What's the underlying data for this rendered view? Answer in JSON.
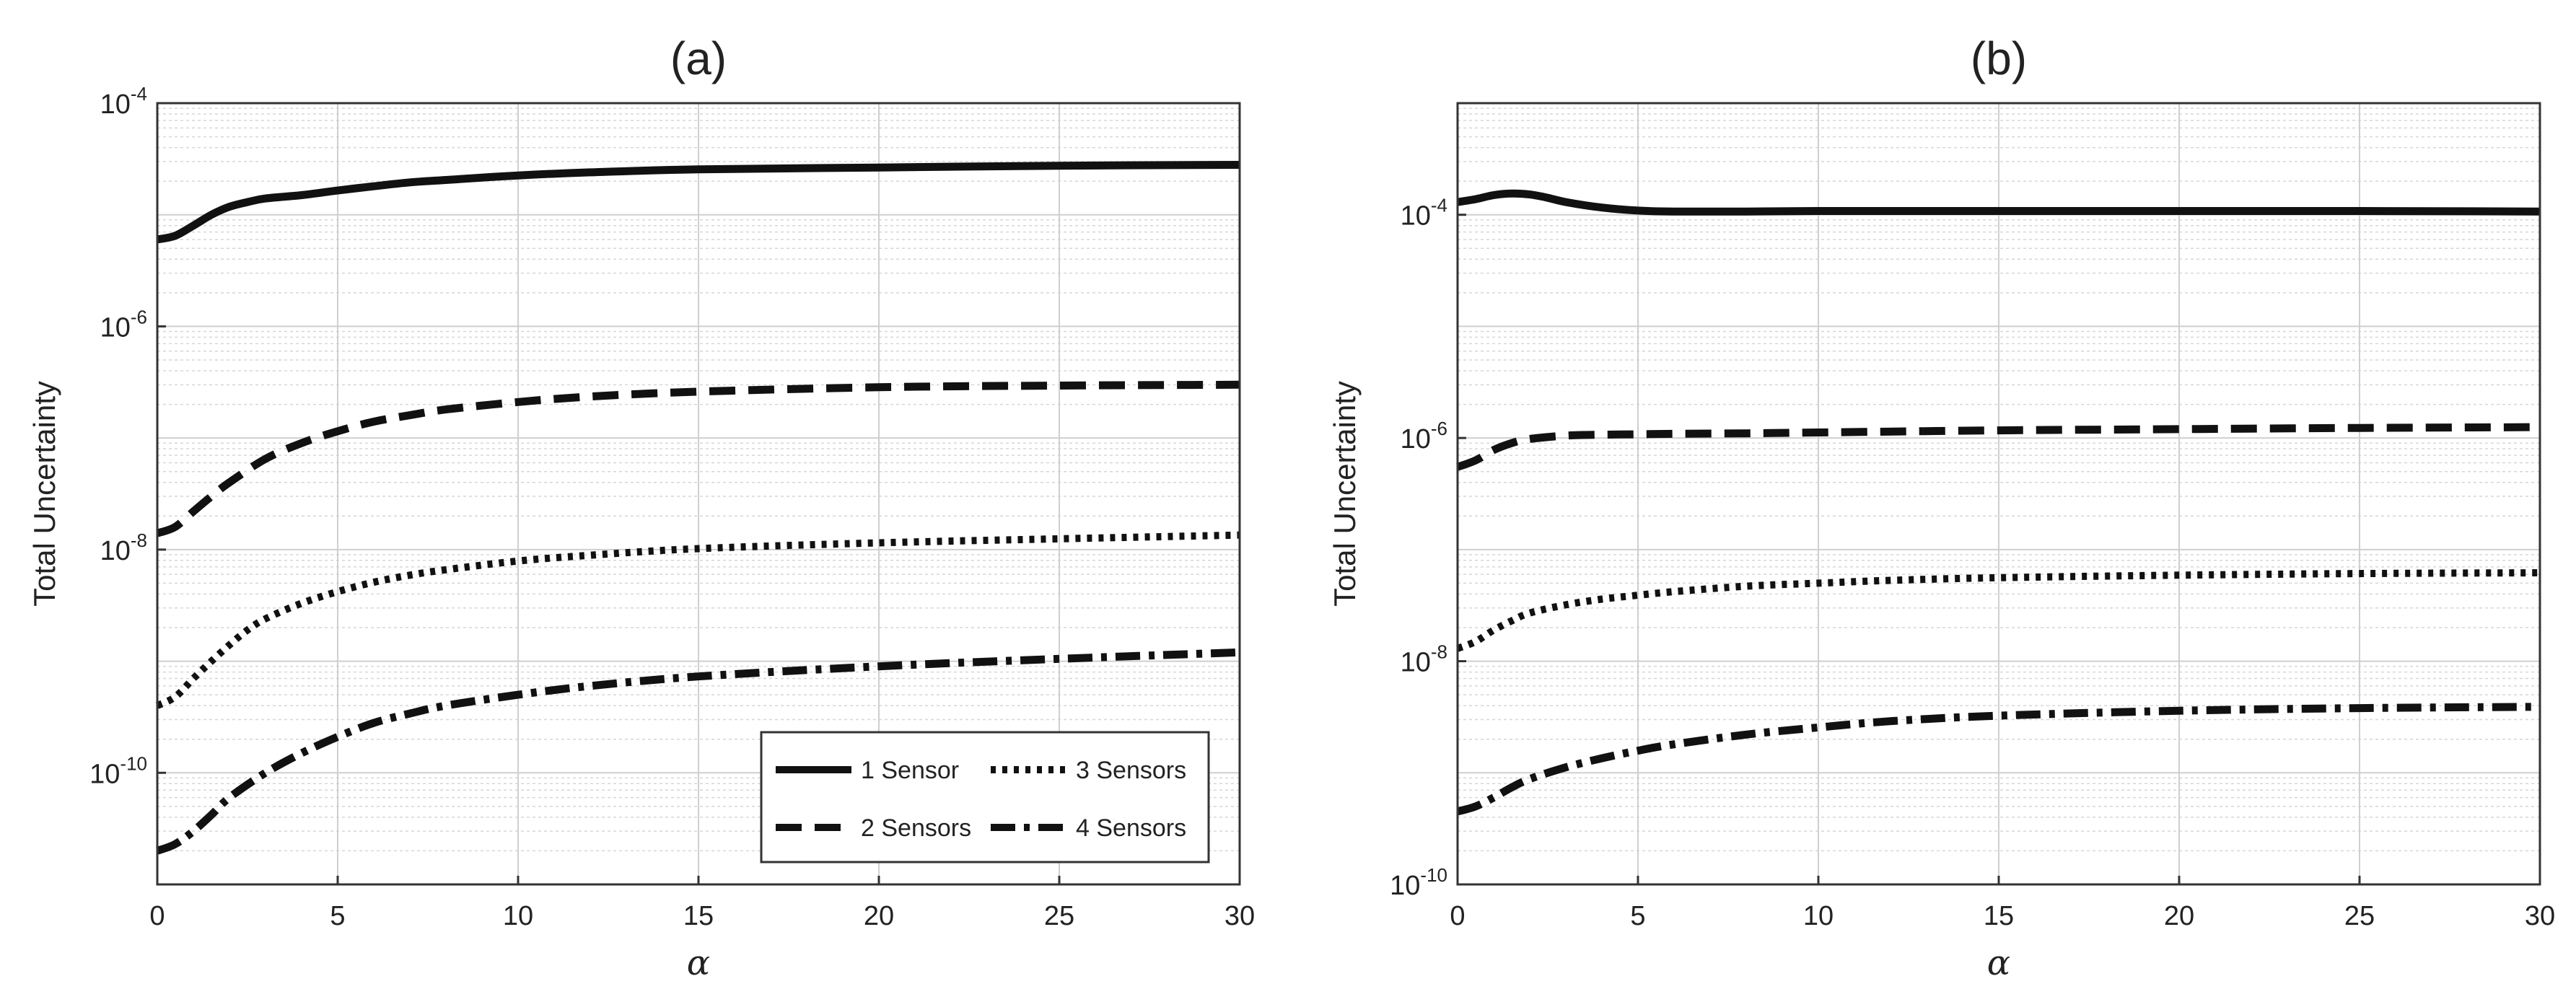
{
  "figure": {
    "panels": [
      "(a)",
      "(b)"
    ]
  },
  "chart_data": [
    {
      "type": "line",
      "title": "(a)",
      "xlabel": "α",
      "ylabel": "Total Uncertainty",
      "xlim": [
        0,
        30
      ],
      "ylim": [
        1e-11,
        0.0001
      ],
      "yscale": "log",
      "x_ticks": [
        0,
        5,
        10,
        15,
        20,
        25,
        30
      ],
      "y_ticks": [
        {
          "value": 0.0001,
          "base": "10",
          "exp": "-4"
        },
        {
          "value": 1e-06,
          "base": "10",
          "exp": "-6"
        },
        {
          "value": 1e-08,
          "base": "10",
          "exp": "-8"
        },
        {
          "value": 1e-10,
          "base": "10",
          "exp": "-10"
        }
      ],
      "grid": true,
      "minor_grid": true,
      "legend_position": "bottom-right",
      "legend_columns": 2,
      "series": [
        {
          "name": "1 Sensor",
          "style": "solid",
          "x": [
            0,
            0.5,
            1,
            1.5,
            2,
            2.5,
            3,
            4,
            5,
            6,
            7,
            8,
            10,
            12,
            15,
            20,
            25,
            30
          ],
          "y": [
            6e-06,
            6.5e-06,
            8e-06,
            1e-05,
            1.18e-05,
            1.3e-05,
            1.4e-05,
            1.5e-05,
            1.65e-05,
            1.8e-05,
            1.95e-05,
            2.05e-05,
            2.25e-05,
            2.4e-05,
            2.55e-05,
            2.65e-05,
            2.75e-05,
            2.8e-05
          ]
        },
        {
          "name": "2 Sensors",
          "style": "dashed",
          "x": [
            0,
            0.5,
            1,
            1.5,
            2,
            3,
            4,
            5,
            6,
            7,
            8,
            10,
            12,
            15,
            20,
            25,
            30
          ],
          "y": [
            1.4e-08,
            1.6e-08,
            2.2e-08,
            3e-08,
            4e-08,
            6.5e-08,
            9e-08,
            1.15e-07,
            1.4e-07,
            1.6e-07,
            1.8e-07,
            2.1e-07,
            2.35e-07,
            2.6e-07,
            2.85e-07,
            2.95e-07,
            3e-07
          ]
        },
        {
          "name": "3 Sensors",
          "style": "dotted",
          "x": [
            0,
            0.5,
            1,
            1.5,
            2,
            2.5,
            3,
            4,
            5,
            6,
            7,
            8,
            10,
            12,
            15,
            20,
            25,
            30
          ],
          "y": [
            4e-10,
            4.8e-10,
            7e-10,
            1e-09,
            1.4e-09,
            1.9e-09,
            2.4e-09,
            3.3e-09,
            4.2e-09,
            5.1e-09,
            5.9e-09,
            6.6e-09,
            7.9e-09,
            8.9e-09,
            1.02e-08,
            1.15e-08,
            1.25e-08,
            1.35e-08
          ]
        },
        {
          "name": "4 Sensors",
          "style": "dashdot",
          "x": [
            0,
            0.5,
            1,
            1.5,
            2,
            3,
            4,
            5,
            6,
            7,
            8,
            10,
            12,
            15,
            20,
            25,
            30
          ],
          "y": [
            2e-11,
            2.3e-11,
            3e-11,
            4.2e-11,
            6e-11,
            1e-10,
            1.5e-10,
            2.1e-10,
            2.8e-10,
            3.4e-10,
            4e-10,
            5e-10,
            6e-10,
            7.3e-10,
            9e-10,
            1.05e-09,
            1.2e-09
          ]
        }
      ]
    },
    {
      "type": "line",
      "title": "(b)",
      "xlabel": "α",
      "ylabel": "Total Uncertainty",
      "xlim": [
        0,
        30
      ],
      "ylim": [
        1e-10,
        0.001
      ],
      "yscale": "log",
      "x_ticks": [
        0,
        5,
        10,
        15,
        20,
        25,
        30
      ],
      "y_ticks": [
        {
          "value": 0.0001,
          "base": "10",
          "exp": "-4"
        },
        {
          "value": 1e-06,
          "base": "10",
          "exp": "-6"
        },
        {
          "value": 1e-08,
          "base": "10",
          "exp": "-8"
        },
        {
          "value": 1e-10,
          "base": "10",
          "exp": "-10"
        }
      ],
      "grid": true,
      "minor_grid": true,
      "series": [
        {
          "name": "1 Sensor",
          "style": "solid",
          "x": [
            0,
            0.5,
            1,
            1.5,
            2,
            2.5,
            3,
            4,
            5,
            6,
            8,
            10,
            15,
            20,
            25,
            30
          ],
          "y": [
            0.00013,
            0.000138,
            0.00015,
            0.000155,
            0.000152,
            0.000142,
            0.00013,
            0.000116,
            0.000109,
            0.000107,
            0.000107,
            0.000108,
            0.000108,
            0.000108,
            0.000108,
            0.000107
          ]
        },
        {
          "name": "2 Sensors",
          "style": "dashed",
          "x": [
            0,
            0.5,
            1,
            1.5,
            2,
            3,
            4,
            5,
            6,
            8,
            10,
            15,
            20,
            25,
            30
          ],
          "y": [
            5.5e-07,
            6.3e-07,
            7.8e-07,
            9e-07,
            9.8e-07,
            1.05e-06,
            1.07e-06,
            1.08e-06,
            1.09e-06,
            1.1e-06,
            1.12e-06,
            1.17e-06,
            1.2e-06,
            1.23e-06,
            1.25e-06
          ]
        },
        {
          "name": "3 Sensors",
          "style": "dotted",
          "x": [
            0,
            0.5,
            1,
            1.5,
            2,
            3,
            4,
            5,
            6,
            8,
            10,
            12,
            15,
            20,
            25,
            30
          ],
          "y": [
            1.3e-08,
            1.5e-08,
            1.9e-08,
            2.3e-08,
            2.7e-08,
            3.2e-08,
            3.6e-08,
            3.9e-08,
            4.2e-08,
            4.7e-08,
            5e-08,
            5.3e-08,
            5.6e-08,
            5.9e-08,
            6.1e-08,
            6.2e-08
          ]
        },
        {
          "name": "4 Sensors",
          "style": "dashdot",
          "x": [
            0,
            0.5,
            1,
            1.5,
            2,
            3,
            4,
            5,
            6,
            8,
            10,
            12,
            15,
            20,
            25,
            30
          ],
          "y": [
            4.5e-10,
            5e-10,
            6e-10,
            7.4e-10,
            8.8e-10,
            1.12e-09,
            1.35e-09,
            1.58e-09,
            1.8e-09,
            2.2e-09,
            2.55e-09,
            2.9e-09,
            3.25e-09,
            3.6e-09,
            3.8e-09,
            3.9e-09
          ]
        }
      ]
    }
  ]
}
